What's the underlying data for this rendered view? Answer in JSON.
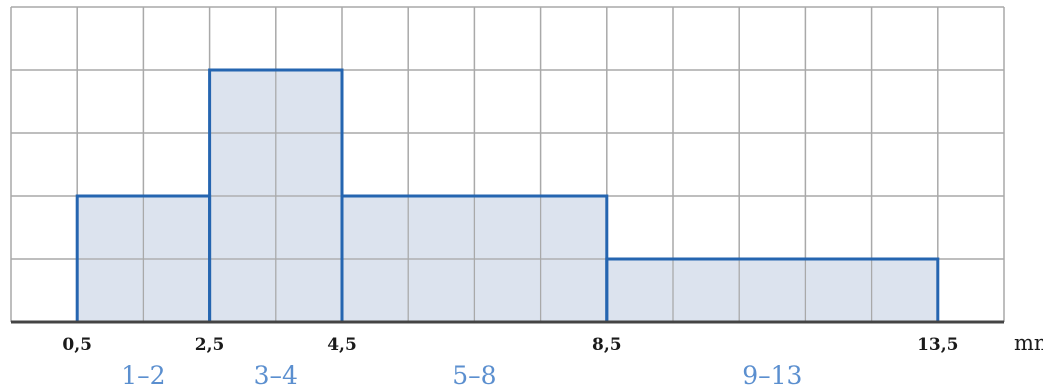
{
  "chart_data": {
    "type": "bar",
    "subtype": "histogram",
    "unit_label": "mm",
    "x_ticks": [
      {
        "value": 0.5,
        "label": "0,5"
      },
      {
        "value": 2.5,
        "label": "2,5"
      },
      {
        "value": 4.5,
        "label": "4,5"
      },
      {
        "value": 8.5,
        "label": "8,5"
      },
      {
        "value": 13.5,
        "label": "13,5"
      }
    ],
    "bins": [
      {
        "category": "1–2",
        "from": 0.5,
        "to": 2.5,
        "height": 2
      },
      {
        "category": "3–4",
        "from": 2.5,
        "to": 4.5,
        "height": 4
      },
      {
        "category": "5–8",
        "from": 4.5,
        "to": 8.5,
        "height": 2
      },
      {
        "category": "9–13",
        "from": 8.5,
        "to": 13.5,
        "height": 1
      }
    ],
    "xlim": [
      -0.5,
      14.5
    ],
    "ylim": [
      0,
      5
    ],
    "grid": true,
    "colors": {
      "fill": "#d6deeb",
      "outline": "#2565b0",
      "grid": "#a9a9a9",
      "axis": "#444444",
      "category_text": "#5b8fcf"
    }
  }
}
